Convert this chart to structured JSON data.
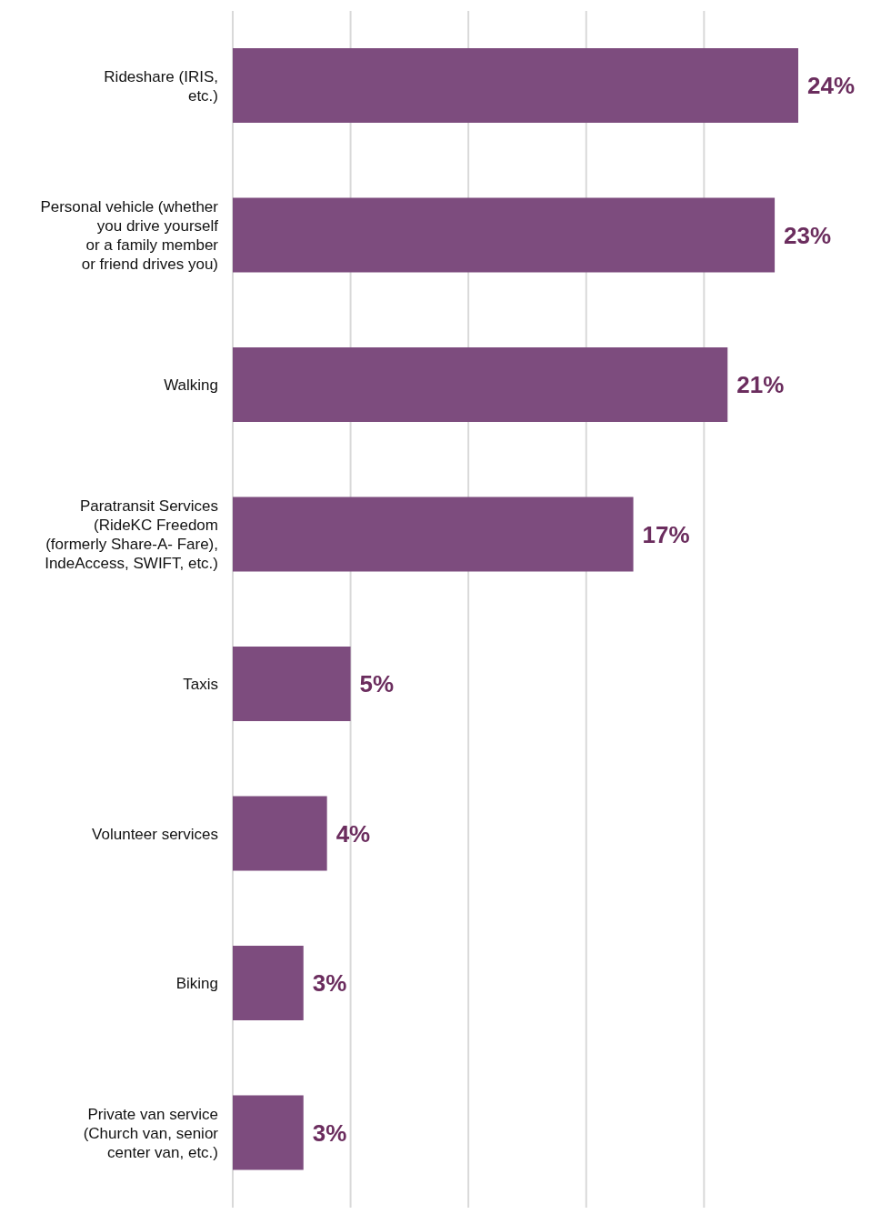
{
  "chart_data": {
    "type": "bar",
    "orientation": "horizontal",
    "categories": [
      "Rideshare (IRIS,\netc.)",
      "Personal vehicle (whether\nyou drive yourself\nor a family member\nor friend drives you)",
      "Walking",
      "Paratransit Services\n(RideKC Freedom\n(formerly Share-A- Fare),\nIndeAccess, SWIFT, etc.)",
      "Taxis",
      "Volunteer services",
      "Biking",
      "Private van service\n(Church van, senior\ncenter van, etc.)"
    ],
    "values": [
      24,
      23,
      21,
      17,
      5,
      4,
      3,
      3
    ],
    "value_labels": [
      "24%",
      "23%",
      "21%",
      "17%",
      "5%",
      "4%",
      "3%",
      "3%"
    ],
    "color": "#7d4c7e",
    "xticks": [
      {
        "value": 0,
        "label": null
      },
      {
        "value": 5,
        "label": null
      },
      {
        "value": 10,
        "label": null
      },
      {
        "value": 15,
        "label": null
      },
      {
        "value": 20,
        "label": null
      }
    ],
    "grid": "x",
    "tick_labels": "y"
  }
}
